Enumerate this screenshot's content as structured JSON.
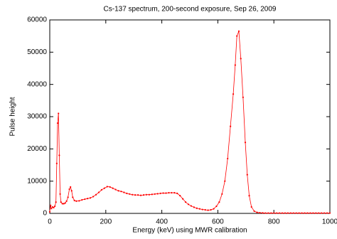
{
  "chart_data": {
    "type": "line",
    "title": "Cs-137 spectrum, 200-second exposure, Sep 26, 2009",
    "x_label": "Energy (keV) using MWR calibration",
    "y_label": "Pulse height",
    "x": [
      0,
      3,
      6,
      10,
      14,
      18,
      22,
      25,
      28,
      31,
      34,
      37,
      40,
      45,
      50,
      55,
      60,
      65,
      70,
      74,
      78,
      82,
      88,
      95,
      105,
      115,
      125,
      135,
      145,
      155,
      165,
      175,
      185,
      195,
      205,
      215,
      225,
      235,
      245,
      255,
      265,
      275,
      285,
      295,
      305,
      315,
      325,
      335,
      345,
      355,
      365,
      375,
      385,
      395,
      405,
      415,
      425,
      435,
      445,
      455,
      465,
      475,
      485,
      495,
      505,
      515,
      525,
      535,
      545,
      555,
      565,
      575,
      585,
      595,
      605,
      615,
      625,
      635,
      645,
      655,
      662,
      668,
      675,
      682,
      690,
      698,
      705,
      712,
      720,
      730,
      740,
      750,
      760,
      770,
      780,
      790,
      800,
      810,
      820,
      830,
      840,
      850,
      860,
      870,
      880,
      890,
      900,
      910,
      920,
      930,
      940,
      950,
      960,
      970,
      980,
      990,
      1000
    ],
    "series": [
      {
        "name": "Cs-137",
        "color": "#ff0000",
        "values": [
          500,
          2500,
          1500,
          2000,
          1800,
          2200,
          3500,
          15500,
          28000,
          31000,
          18000,
          6000,
          3500,
          3000,
          3000,
          3200,
          3800,
          5000,
          7500,
          8200,
          7000,
          5000,
          4000,
          3800,
          3900,
          4200,
          4400,
          4600,
          4800,
          5200,
          5800,
          6500,
          7300,
          7800,
          8300,
          8200,
          7800,
          7400,
          7000,
          6800,
          6500,
          6200,
          6000,
          5800,
          5700,
          5700,
          5600,
          5700,
          5800,
          5800,
          5900,
          6000,
          6100,
          6200,
          6300,
          6300,
          6400,
          6400,
          6400,
          6200,
          5500,
          4500,
          3500,
          2800,
          2300,
          1900,
          1600,
          1400,
          1200,
          1100,
          1000,
          1100,
          1400,
          2200,
          3500,
          6000,
          10000,
          17000,
          27000,
          37000,
          46000,
          55000,
          56500,
          48000,
          36000,
          22000,
          12000,
          5500,
          2000,
          700,
          300,
          200,
          150,
          100,
          100,
          100,
          100,
          100,
          100,
          100,
          100,
          100,
          100,
          100,
          100,
          100,
          100,
          100,
          100,
          100,
          100,
          100,
          100,
          100,
          100,
          100,
          100
        ]
      }
    ],
    "xlim": [
      0,
      1000
    ],
    "ylim": [
      0,
      60000
    ],
    "xticks": [
      0,
      200,
      400,
      600,
      800,
      1000
    ],
    "yticks": [
      0,
      10000,
      20000,
      30000,
      40000,
      50000,
      60000
    ],
    "grid": false
  }
}
